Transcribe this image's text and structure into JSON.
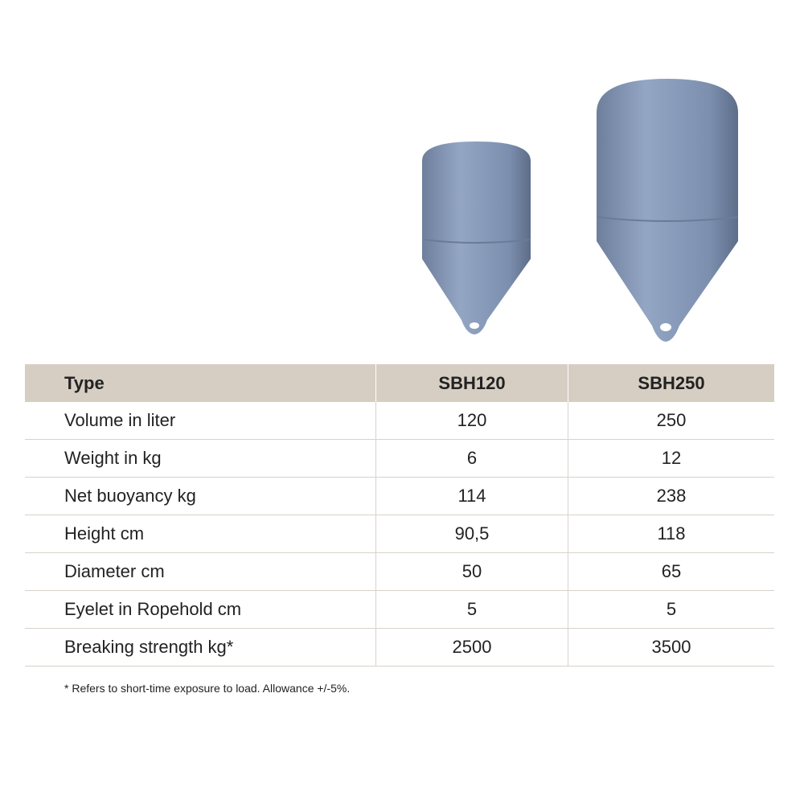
{
  "table": {
    "header": [
      "Type",
      "SBH120",
      "SBH250"
    ],
    "rows": [
      [
        "Volume in liter",
        "120",
        "250"
      ],
      [
        "Weight in kg",
        "6",
        "12"
      ],
      [
        "Net buoyancy kg",
        "114",
        "238"
      ],
      [
        "Height cm",
        "90,5",
        "118"
      ],
      [
        "Diameter cm",
        "50",
        "65"
      ],
      [
        "Eyelet in Ropehold cm",
        "5",
        "5"
      ],
      [
        "Breaking strength kg*",
        "2500",
        "3500"
      ]
    ]
  },
  "footnote": "* Refers to short-time exposure to load. Allowance +/-5%."
}
